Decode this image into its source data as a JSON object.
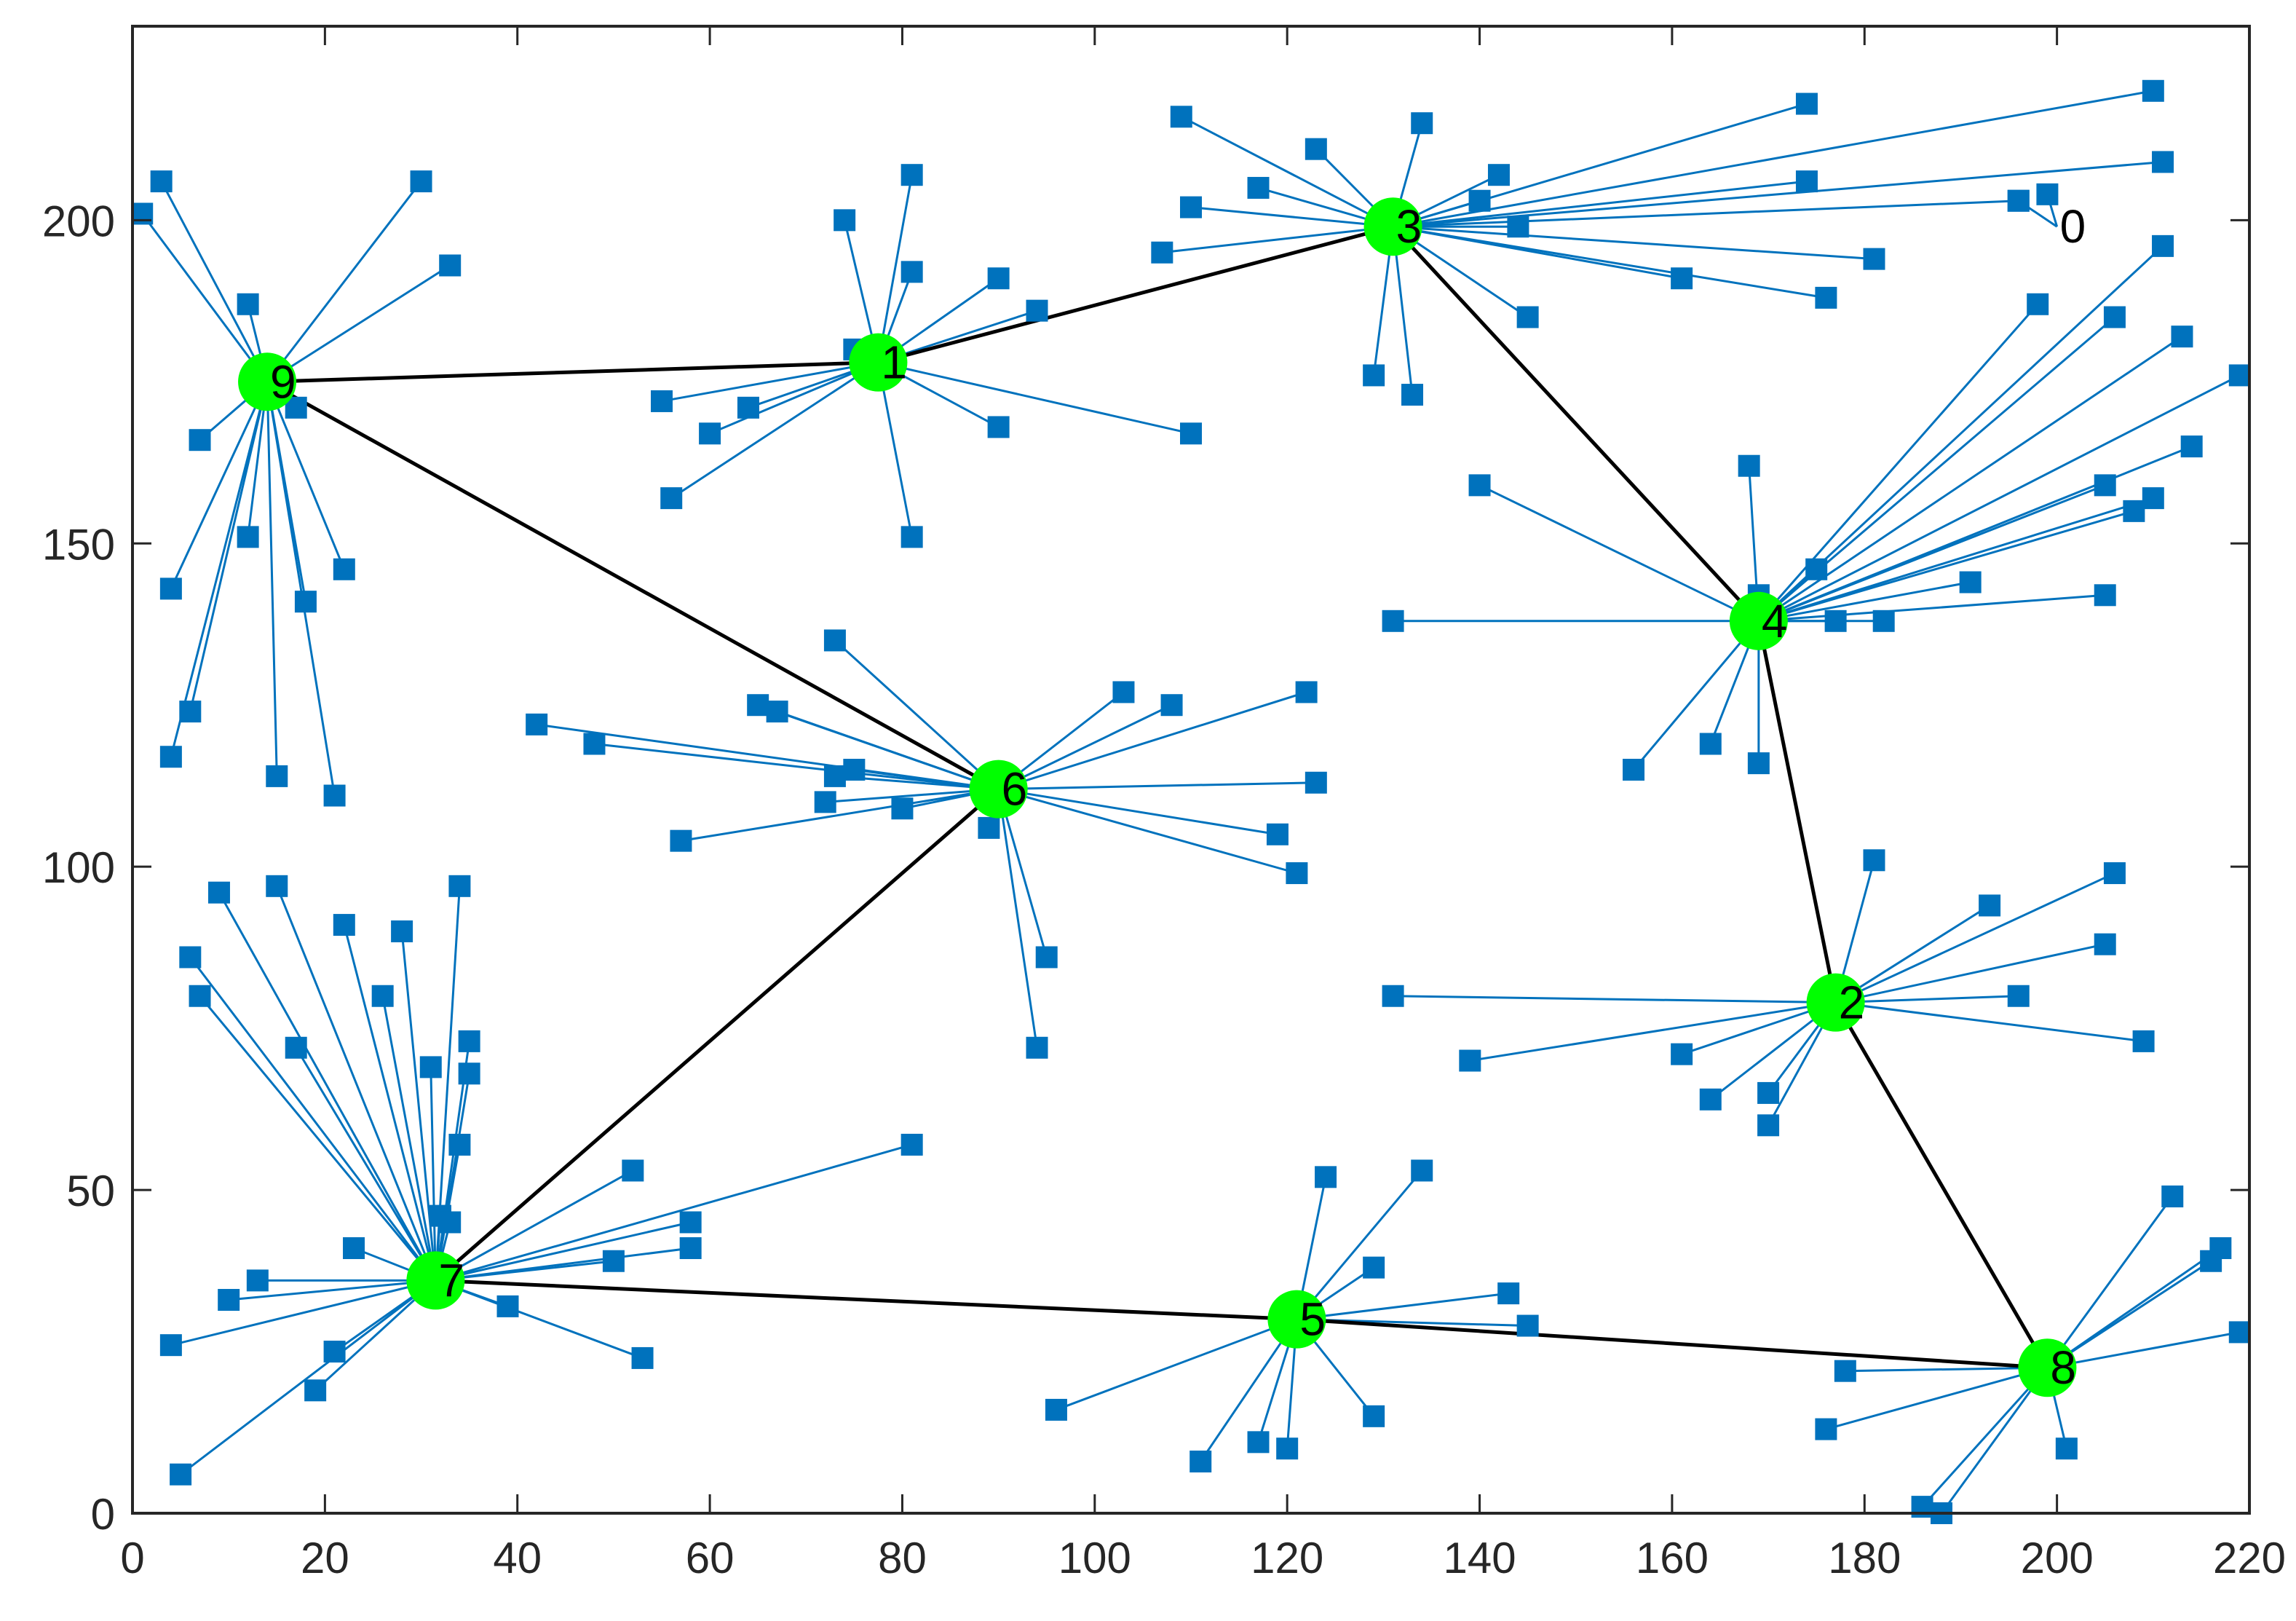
{
  "chart_data": {
    "type": "scatter",
    "title": "",
    "xlabel": "",
    "ylabel": "",
    "xlim": [
      0,
      220
    ],
    "ylim": [
      0,
      230
    ],
    "xticks": [
      0,
      20,
      40,
      60,
      80,
      100,
      120,
      140,
      160,
      180,
      200,
      220
    ],
    "yticks": [
      0,
      50,
      100,
      150,
      200
    ],
    "xtick_labels": [
      "0",
      "20",
      "40",
      "60",
      "80",
      "100",
      "120",
      "140",
      "160",
      "180",
      "200",
      "220"
    ],
    "ytick_labels": [
      "0",
      "50",
      "100",
      "150",
      "200"
    ],
    "grid": false,
    "colors": {
      "member": "#0072BD",
      "link": "#0072BD",
      "head": "#00FF00",
      "backbone": "#000000"
    },
    "heads": [
      {
        "id": "0",
        "label": "0",
        "x": 200,
        "y": 199,
        "visible": false
      },
      {
        "id": "1",
        "label": "1",
        "x": 77.5,
        "y": 178
      },
      {
        "id": "2",
        "label": "2",
        "x": 177,
        "y": 79
      },
      {
        "id": "3",
        "label": "3",
        "x": 131,
        "y": 199
      },
      {
        "id": "4",
        "label": "4",
        "x": 169,
        "y": 138
      },
      {
        "id": "5",
        "label": "5",
        "x": 121,
        "y": 30
      },
      {
        "id": "6",
        "label": "6",
        "x": 90,
        "y": 112
      },
      {
        "id": "7",
        "label": "7",
        "x": 31.5,
        "y": 36
      },
      {
        "id": "8",
        "label": "8",
        "x": 199,
        "y": 22.5
      },
      {
        "id": "9",
        "label": "9",
        "x": 14,
        "y": 175
      }
    ],
    "backbone": [
      [
        "9",
        "1"
      ],
      [
        "1",
        "3"
      ],
      [
        "3",
        "4"
      ],
      [
        "4",
        "2"
      ],
      [
        "2",
        "8"
      ],
      [
        "8",
        "5"
      ],
      [
        "5",
        "7"
      ],
      [
        "7",
        "6"
      ],
      [
        "6",
        "9"
      ]
    ],
    "members": [
      {
        "head": "0",
        "points": [
          [
            196,
            203
          ],
          [
            199,
            204
          ]
        ]
      },
      {
        "head": "9",
        "points": [
          [
            3,
            206
          ],
          [
            1,
            201
          ],
          [
            12,
            187
          ],
          [
            30,
            206
          ],
          [
            33,
            193
          ],
          [
            7,
            166
          ],
          [
            17,
            171
          ],
          [
            12,
            151
          ],
          [
            4,
            143
          ],
          [
            18,
            141
          ],
          [
            22,
            146
          ],
          [
            6,
            124
          ],
          [
            4,
            117
          ],
          [
            15,
            114
          ],
          [
            21,
            111
          ]
        ]
      },
      {
        "head": "1",
        "points": [
          [
            74,
            200
          ],
          [
            81,
            207
          ],
          [
            81,
            192
          ],
          [
            90,
            191
          ],
          [
            94,
            186
          ],
          [
            75,
            180
          ],
          [
            55,
            172
          ],
          [
            64,
            171
          ],
          [
            60,
            167
          ],
          [
            56,
            157
          ],
          [
            90,
            168
          ],
          [
            110,
            167
          ],
          [
            81,
            151
          ]
        ]
      },
      {
        "head": "3",
        "points": [
          [
            109,
            216
          ],
          [
            123,
            211
          ],
          [
            134,
            215
          ],
          [
            110,
            202
          ],
          [
            117,
            205
          ],
          [
            107,
            195
          ],
          [
            142,
            207
          ],
          [
            140,
            203
          ],
          [
            144,
            199
          ],
          [
            145,
            185
          ],
          [
            129,
            176
          ],
          [
            133,
            173
          ],
          [
            174,
            218
          ],
          [
            210,
            220
          ],
          [
            211,
            209
          ],
          [
            174,
            206
          ],
          [
            196,
            203
          ],
          [
            181,
            194
          ],
          [
            161,
            191
          ],
          [
            176,
            188
          ]
        ]
      },
      {
        "head": "4",
        "points": [
          [
            168,
            162
          ],
          [
            198,
            187
          ],
          [
            140,
            159
          ],
          [
            131,
            138
          ],
          [
            156,
            115
          ],
          [
            164,
            119
          ],
          [
            169,
            116
          ],
          [
            175,
            146
          ],
          [
            177,
            138
          ],
          [
            182,
            138
          ],
          [
            191,
            144
          ],
          [
            205,
            142
          ],
          [
            206,
            185
          ],
          [
            211,
            196
          ],
          [
            213,
            182
          ],
          [
            219,
            176
          ],
          [
            214,
            165
          ],
          [
            205,
            159
          ],
          [
            210,
            157
          ],
          [
            208,
            155
          ],
          [
            169,
            142
          ]
        ]
      },
      {
        "head": "2",
        "points": [
          [
            181,
            101
          ],
          [
            193,
            94
          ],
          [
            206,
            99
          ],
          [
            205,
            88
          ],
          [
            196,
            80
          ],
          [
            209,
            73
          ],
          [
            131,
            80
          ],
          [
            139,
            70
          ],
          [
            161,
            71
          ],
          [
            164,
            64
          ],
          [
            170,
            65
          ],
          [
            170,
            60
          ]
        ]
      },
      {
        "head": "6",
        "points": [
          [
            73,
            135
          ],
          [
            103,
            127
          ],
          [
            108,
            125
          ],
          [
            122,
            127
          ],
          [
            123,
            113
          ],
          [
            119,
            105
          ],
          [
            121,
            99
          ],
          [
            95,
            86
          ],
          [
            94,
            72
          ],
          [
            89,
            106
          ],
          [
            80,
            109
          ],
          [
            72,
            110
          ],
          [
            73,
            114
          ],
          [
            75,
            115
          ],
          [
            57,
            104
          ],
          [
            48,
            119
          ],
          [
            42,
            122
          ],
          [
            65,
            125
          ],
          [
            67,
            124
          ]
        ]
      },
      {
        "head": "7",
        "points": [
          [
            9,
            96
          ],
          [
            15,
            97
          ],
          [
            22,
            91
          ],
          [
            28,
            90
          ],
          [
            34,
            97
          ],
          [
            6,
            86
          ],
          [
            7,
            80
          ],
          [
            26,
            80
          ],
          [
            17,
            72
          ],
          [
            31,
            69
          ],
          [
            35,
            73
          ],
          [
            35,
            68
          ],
          [
            34,
            57
          ],
          [
            32,
            46
          ],
          [
            33,
            45
          ],
          [
            23,
            41
          ],
          [
            13,
            36
          ],
          [
            10,
            33
          ],
          [
            4,
            26
          ],
          [
            21,
            25
          ],
          [
            19,
            19
          ],
          [
            5,
            6
          ],
          [
            39,
            32
          ],
          [
            53,
            24
          ],
          [
            50,
            39
          ],
          [
            52,
            53
          ],
          [
            58,
            41
          ],
          [
            58,
            45
          ],
          [
            81,
            57
          ]
        ]
      },
      {
        "head": "5",
        "points": [
          [
            124,
            52
          ],
          [
            134,
            53
          ],
          [
            129,
            38
          ],
          [
            143,
            34
          ],
          [
            145,
            29
          ],
          [
            96,
            16
          ],
          [
            111,
            8
          ],
          [
            117,
            11
          ],
          [
            120,
            10
          ],
          [
            129,
            15
          ]
        ]
      },
      {
        "head": "8",
        "points": [
          [
            212,
            49
          ],
          [
            217,
            41
          ],
          [
            216,
            39
          ],
          [
            219,
            28
          ],
          [
            178,
            22
          ],
          [
            176,
            13
          ],
          [
            201,
            10
          ],
          [
            186,
            1
          ],
          [
            188,
            0
          ]
        ]
      }
    ]
  }
}
